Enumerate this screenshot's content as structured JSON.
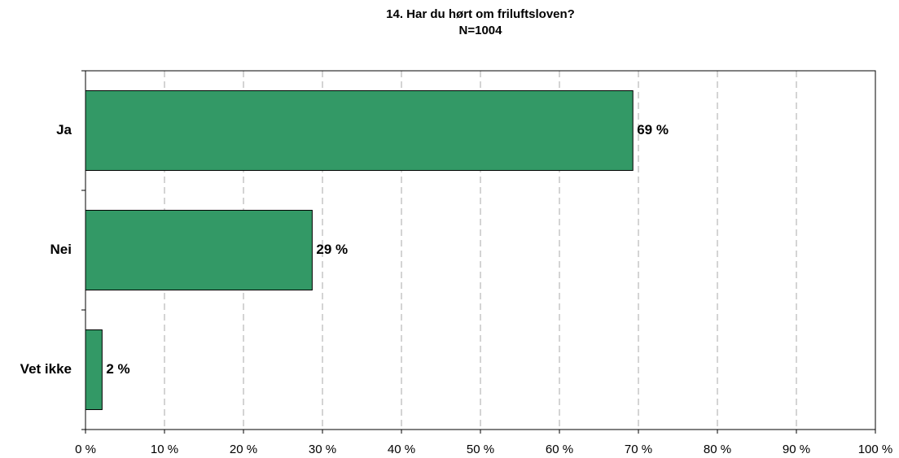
{
  "chart_data": {
    "type": "barh",
    "title": "14. Har du hørt om friluftsloven?",
    "subtitle": "N=1004",
    "categories": [
      "Ja",
      "Nei",
      "Vet ikke"
    ],
    "values": [
      69.3,
      28.7,
      2.1
    ],
    "value_labels": [
      "69 %",
      "29 %",
      "2 %"
    ],
    "color": "#339966",
    "xlim": [
      0,
      100
    ],
    "xticks": [
      {
        "value": 0,
        "label": "0 %"
      },
      {
        "value": 10,
        "label": "10 %"
      },
      {
        "value": 20,
        "label": "20 %"
      },
      {
        "value": 30,
        "label": "30 %"
      },
      {
        "value": 40,
        "label": "40 %"
      },
      {
        "value": 50,
        "label": "50 %"
      },
      {
        "value": 60,
        "label": "60 %"
      },
      {
        "value": 70,
        "label": "70 %"
      },
      {
        "value": 80,
        "label": "80 %"
      },
      {
        "value": 90,
        "label": "90 %"
      },
      {
        "value": 100,
        "label": "100 %"
      }
    ],
    "grid": true
  }
}
